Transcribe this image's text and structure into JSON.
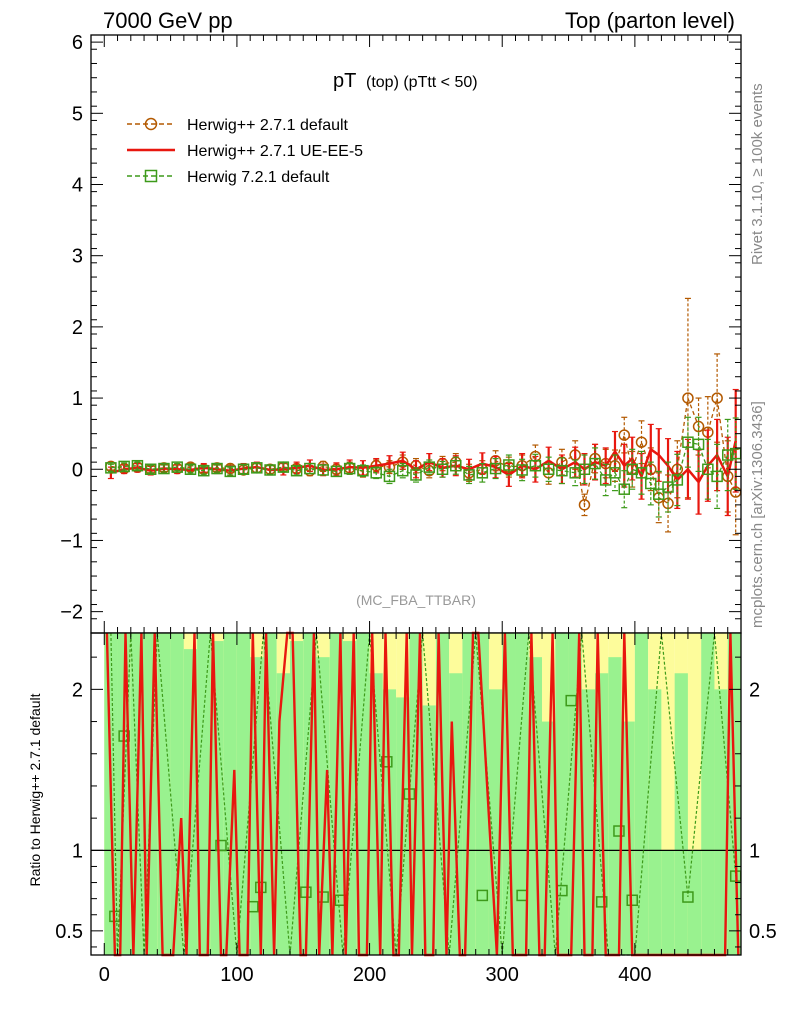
{
  "header": {
    "left": "7000 GeV pp",
    "right": "Top (parton level)"
  },
  "side": {
    "rivet": "Rivet 3.1.10, ≥ 100k events",
    "mcplots": "mcplots.cern.ch [arXiv:1306.3436]"
  },
  "colors": {
    "herwig_default": "#b35900",
    "herwig_ueee5": "#e8170f",
    "herwig7": "#3d9a1a",
    "band_green": "#99f28f",
    "band_yellow": "#fdfc9b"
  },
  "chart_data": [
    {
      "type": "line",
      "title_main": "pT",
      "title_sub": "(top) (pTtt < 50)",
      "analysis_label": "(MC_FBA_TTBAR)",
      "xlabel": "",
      "ylabel": "",
      "xlim": [
        -10,
        480
      ],
      "ylim": [
        -2.3,
        6.1
      ],
      "yticks": [
        -2,
        -1,
        0,
        1,
        2,
        3,
        4,
        5,
        6
      ],
      "ytick_labels": [
        "−2",
        "−1",
        "0",
        "1",
        "2",
        "3",
        "4",
        "5",
        "6"
      ],
      "legend": [
        "Herwig++ 2.7.1 default",
        "Herwig++ 2.7.1 UE-EE-5",
        "Herwig 7.2.1 default"
      ],
      "series": [
        {
          "name": "Herwig++ 2.7.1 default",
          "style": "dashed-circle",
          "x": [
            5,
            15,
            25,
            35,
            45,
            55,
            65,
            75,
            85,
            95,
            105,
            115,
            125,
            135,
            145,
            155,
            165,
            175,
            185,
            195,
            205,
            215,
            225,
            235,
            245,
            255,
            265,
            275,
            285,
            295,
            305,
            315,
            325,
            335,
            345,
            355,
            362,
            370,
            378,
            385,
            392,
            398,
            405,
            412,
            418,
            425,
            432,
            440,
            448,
            455,
            462,
            470,
            476
          ],
          "y": [
            0.04,
            0.01,
            0.03,
            0.0,
            0.02,
            0.01,
            0.03,
            0.0,
            0.02,
            0.01,
            -0.01,
            0.02,
            0.0,
            0.03,
            0.01,
            -0.02,
            0.04,
            0.0,
            0.02,
            -0.03,
            0.05,
            0.03,
            0.1,
            0.05,
            -0.02,
            0.08,
            0.1,
            -0.05,
            0.0,
            0.12,
            0.03,
            0.05,
            0.18,
            -0.05,
            0.1,
            0.2,
            -0.5,
            0.15,
            0.08,
            0.05,
            0.48,
            0.0,
            0.38,
            0.0,
            -0.4,
            -0.48,
            0.0,
            1.0,
            0.6,
            0.52,
            1.0,
            -0.1,
            -0.32
          ],
          "err": [
            0.05,
            0.05,
            0.05,
            0.05,
            0.05,
            0.05,
            0.05,
            0.05,
            0.05,
            0.06,
            0.06,
            0.06,
            0.06,
            0.06,
            0.06,
            0.07,
            0.07,
            0.07,
            0.08,
            0.08,
            0.08,
            0.09,
            0.1,
            0.1,
            0.1,
            0.1,
            0.12,
            0.12,
            0.12,
            0.14,
            0.14,
            0.15,
            0.16,
            0.16,
            0.18,
            0.2,
            0.15,
            0.2,
            0.2,
            0.22,
            0.25,
            0.25,
            0.3,
            0.3,
            0.35,
            0.4,
            0.4,
            1.4,
            0.4,
            0.5,
            0.62,
            0.5,
            0.6
          ]
        },
        {
          "name": "Herwig++ 2.7.1 UE-EE-5",
          "style": "solid",
          "x": [
            5,
            15,
            25,
            35,
            45,
            55,
            65,
            75,
            85,
            95,
            105,
            115,
            125,
            135,
            145,
            155,
            165,
            175,
            185,
            195,
            205,
            215,
            225,
            235,
            245,
            255,
            265,
            275,
            285,
            295,
            305,
            315,
            325,
            335,
            345,
            355,
            362,
            370,
            378,
            385,
            392,
            398,
            405,
            412,
            418,
            425,
            432,
            440,
            448,
            455,
            462,
            470,
            476
          ],
          "y": [
            -0.05,
            0.0,
            0.02,
            -0.02,
            0.01,
            0.0,
            -0.01,
            0.02,
            0.0,
            -0.02,
            0.01,
            0.03,
            -0.01,
            0.0,
            0.02,
            0.05,
            -0.01,
            0.0,
            0.03,
            0.02,
            0.05,
            0.08,
            0.12,
            0.0,
            0.1,
            0.02,
            0.05,
            0.0,
            0.08,
            0.03,
            -0.08,
            0.05,
            0.0,
            0.12,
            0.0,
            0.1,
            0.0,
            0.1,
            0.05,
            0.25,
            0.05,
            0.15,
            -0.1,
            0.28,
            0.2,
            0.05,
            -0.15,
            0.0,
            -0.18,
            0.05,
            0.2,
            -0.1,
            0.4
          ],
          "err": [
            0.08,
            0.06,
            0.06,
            0.06,
            0.06,
            0.06,
            0.06,
            0.06,
            0.06,
            0.07,
            0.07,
            0.07,
            0.07,
            0.08,
            0.08,
            0.08,
            0.08,
            0.09,
            0.1,
            0.1,
            0.1,
            0.11,
            0.12,
            0.12,
            0.12,
            0.13,
            0.14,
            0.14,
            0.15,
            0.15,
            0.16,
            0.17,
            0.18,
            0.19,
            0.2,
            0.21,
            0.22,
            0.25,
            0.25,
            0.28,
            0.3,
            0.3,
            0.32,
            0.35,
            0.37,
            0.38,
            0.4,
            0.42,
            0.45,
            0.5,
            0.5,
            0.55,
            0.72
          ]
        },
        {
          "name": "Herwig 7.2.1 default",
          "style": "dashed-square",
          "x": [
            5,
            15,
            25,
            35,
            45,
            55,
            65,
            75,
            85,
            95,
            105,
            115,
            125,
            135,
            145,
            155,
            165,
            175,
            185,
            195,
            205,
            215,
            225,
            235,
            245,
            255,
            265,
            275,
            285,
            295,
            305,
            315,
            325,
            335,
            345,
            355,
            362,
            370,
            378,
            385,
            392,
            398,
            405,
            412,
            418,
            425,
            432,
            440,
            448,
            455,
            462,
            470,
            476
          ],
          "y": [
            0.02,
            0.04,
            0.05,
            0.0,
            0.01,
            0.03,
            0.0,
            -0.02,
            0.01,
            -0.03,
            0.0,
            0.02,
            -0.01,
            0.03,
            -0.02,
            0.01,
            -0.01,
            -0.03,
            0.01,
            -0.02,
            -0.05,
            -0.1,
            -0.02,
            -0.08,
            0.03,
            0.0,
            0.05,
            -0.08,
            -0.05,
            0.01,
            0.06,
            -0.01,
            0.05,
            0.0,
            -0.02,
            -0.05,
            0.0,
            0.08,
            -0.15,
            -0.05,
            -0.28,
            0.0,
            -0.05,
            -0.2,
            -0.35,
            -0.25,
            -0.15,
            0.38,
            0.35,
            0.0,
            -0.1,
            0.2,
            0.22
          ],
          "err": [
            0.05,
            0.05,
            0.05,
            0.05,
            0.05,
            0.05,
            0.05,
            0.05,
            0.05,
            0.05,
            0.06,
            0.06,
            0.06,
            0.06,
            0.06,
            0.07,
            0.07,
            0.07,
            0.08,
            0.08,
            0.08,
            0.1,
            0.1,
            0.1,
            0.1,
            0.11,
            0.12,
            0.12,
            0.13,
            0.14,
            0.14,
            0.15,
            0.16,
            0.17,
            0.18,
            0.18,
            0.2,
            0.22,
            0.22,
            0.25,
            0.26,
            0.28,
            0.3,
            0.3,
            0.32,
            0.35,
            0.36,
            0.35,
            0.38,
            0.42,
            0.45,
            0.5,
            0.5
          ]
        }
      ]
    },
    {
      "type": "line",
      "ylabel": "Ratio to Herwig++ 2.7.1 default",
      "xlim": [
        -10,
        480
      ],
      "ylim": [
        0.35,
        2.35
      ],
      "yticks": [
        0.5,
        1,
        2
      ],
      "ytick_labels": [
        "0.5",
        "1",
        "2"
      ],
      "xticks": [
        0,
        100,
        200,
        300,
        400
      ],
      "xtick_labels": [
        "0",
        "100",
        "200",
        "300",
        "400"
      ],
      "reference_line": 1,
      "bands": {
        "x_edges": [
          0,
          10,
          20,
          30,
          40,
          50,
          60,
          70,
          80,
          90,
          100,
          110,
          120,
          130,
          140,
          150,
          160,
          170,
          180,
          190,
          200,
          210,
          220,
          230,
          240,
          250,
          260,
          270,
          280,
          290,
          300,
          310,
          320,
          330,
          340,
          350,
          360,
          370,
          380,
          390,
          400,
          410,
          420,
          430,
          440,
          450,
          460,
          470,
          480
        ],
        "green_top": [
          2.35,
          2.35,
          2.35,
          2.35,
          2.35,
          2.35,
          2.25,
          2.35,
          2.3,
          2.35,
          2.35,
          2.2,
          2.35,
          2.1,
          2.3,
          2.35,
          2.2,
          2.35,
          2.3,
          2.35,
          2.1,
          2.0,
          1.95,
          2.35,
          1.9,
          2.35,
          2.1,
          2.35,
          2.35,
          2.0,
          2.35,
          2.35,
          2.2,
          1.8,
          2.35,
          2.35,
          2.0,
          2.1,
          2.2,
          1.8,
          2.35,
          2.0,
          1.0,
          2.1,
          1.0,
          2.35,
          2.0,
          2.35,
          2.35
        ],
        "yellow_top": [
          2.35,
          2.35,
          2.35,
          2.35,
          2.35,
          2.35,
          2.35,
          2.35,
          2.35,
          2.35,
          2.35,
          2.35,
          2.35,
          2.35,
          2.35,
          2.35,
          2.35,
          2.35,
          2.35,
          2.35,
          2.35,
          2.35,
          2.35,
          2.35,
          2.35,
          2.35,
          2.35,
          2.35,
          2.35,
          2.35,
          2.35,
          2.35,
          2.35,
          2.35,
          2.35,
          2.35,
          2.35,
          2.35,
          2.35,
          2.35,
          2.35,
          2.35,
          2.35,
          2.35,
          2.35,
          2.35,
          2.35,
          2.35
        ],
        "band_bottom": 0.35
      },
      "series": [
        {
          "name": "Herwig++ 2.7.1 UE-EE-5 / Herwig++ 2.7.1 default",
          "style": "solid",
          "x": [
            2,
            8,
            12,
            16,
            22,
            28,
            32,
            38,
            44,
            48,
            52,
            58,
            62,
            68,
            72,
            78,
            82,
            88,
            92,
            98,
            102,
            108,
            112,
            118,
            122,
            128,
            132,
            138,
            142,
            148,
            152,
            158,
            162,
            168,
            172,
            178,
            182,
            188,
            192,
            198,
            202,
            208,
            212,
            218,
            222,
            228,
            232,
            238,
            242,
            248,
            252,
            258,
            262,
            268,
            272,
            278,
            282,
            290,
            296,
            302,
            308,
            312,
            318,
            322,
            328,
            332,
            338,
            342,
            348,
            352,
            358,
            362,
            368,
            372,
            378,
            382,
            388,
            392,
            398,
            402,
            408,
            412,
            418,
            422,
            428,
            432,
            438,
            442,
            448,
            452,
            458,
            462,
            468,
            472,
            478
          ],
          "y": [
            2.35,
            0.35,
            0.35,
            2.35,
            0.35,
            2.35,
            0.35,
            2.35,
            0.35,
            0.35,
            0.35,
            1.2,
            0.35,
            2.35,
            0.35,
            0.35,
            2.35,
            0.35,
            0.35,
            1.5,
            0.35,
            0.35,
            2.35,
            0.35,
            2.35,
            0.35,
            1.8,
            2.35,
            2.35,
            0.35,
            0.35,
            2.35,
            0.35,
            1.5,
            0.35,
            2.35,
            0.35,
            2.35,
            0.35,
            0.35,
            2.35,
            0.35,
            2.35,
            0.35,
            0.35,
            2.35,
            0.35,
            2.35,
            0.35,
            0.35,
            2.35,
            0.35,
            1.8,
            0.35,
            0.35,
            2.35,
            2.35,
            1.2,
            0.35,
            2.35,
            0.35,
            0.35,
            0.35,
            2.35,
            0.35,
            0.35,
            2.35,
            0.35,
            0.35,
            0.35,
            2.35,
            0.35,
            0.35,
            2.35,
            0.35,
            0.35,
            0.35,
            2.35,
            0.35,
            0.35,
            0.35,
            0.35,
            0.35,
            0.35,
            0.35,
            0.35,
            0.35,
            0.35,
            0.35,
            0.35,
            0.35,
            0.35,
            0.35,
            2.35,
            0.35
          ]
        },
        {
          "name": "Herwig 7.2.1 default / Herwig++ 2.7.1 default",
          "style": "dashed-square",
          "x": [
            8,
            15,
            88,
            112,
            118,
            152,
            165,
            178,
            213,
            230,
            285,
            315,
            345,
            352,
            375,
            388,
            398,
            440,
            476
          ],
          "y": [
            0.59,
            1.71,
            1.03,
            0.65,
            0.77,
            0.74,
            0.71,
            0.69,
            1.55,
            1.35,
            0.72,
            0.72,
            0.75,
            1.93,
            0.68,
            1.12,
            0.69,
            0.71,
            0.84
          ],
          "dashed_x": [
            5,
            10,
            20,
            30,
            40,
            60,
            80,
            100,
            120,
            140,
            160,
            180,
            200,
            220,
            240,
            260,
            280,
            300,
            320,
            340,
            360,
            380,
            400,
            420,
            440,
            460,
            476
          ],
          "dashed_y": [
            2.35,
            0.35,
            2.35,
            0.35,
            2.35,
            0.35,
            2.35,
            0.35,
            2.35,
            0.35,
            2.35,
            0.35,
            2.35,
            0.35,
            2.35,
            0.35,
            2.35,
            0.35,
            2.35,
            0.35,
            2.35,
            0.35,
            0.35,
            2.35,
            0.71,
            2.35,
            0.84
          ]
        }
      ]
    }
  ]
}
